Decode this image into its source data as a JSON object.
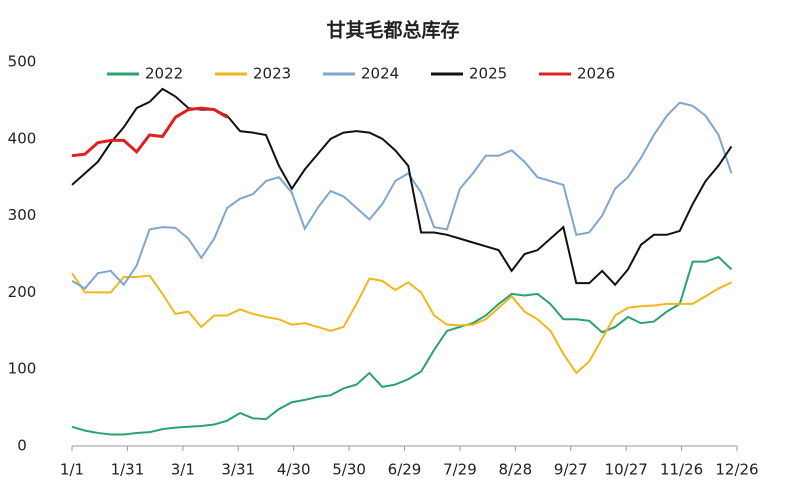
{
  "chart_data": {
    "type": "line",
    "title": "甘其毛都总库存",
    "x": [
      0,
      7,
      14,
      21,
      28,
      35,
      42,
      49,
      56,
      63,
      70,
      77,
      84,
      91,
      98,
      105,
      112,
      119,
      126,
      133,
      140,
      147,
      154,
      161,
      168,
      175,
      182,
      189,
      196,
      203,
      210,
      217,
      224,
      231,
      238,
      245,
      252,
      259,
      266,
      273,
      280,
      287,
      294,
      301,
      308,
      315,
      322,
      329,
      336,
      343,
      350,
      357
    ],
    "xlim": [
      0,
      360
    ],
    "xticks": [
      {
        "value": 0,
        "label": "1/1"
      },
      {
        "value": 30,
        "label": "1/31"
      },
      {
        "value": 60,
        "label": "3/1"
      },
      {
        "value": 90,
        "label": "3/31"
      },
      {
        "value": 120,
        "label": "4/30"
      },
      {
        "value": 150,
        "label": "5/30"
      },
      {
        "value": 180,
        "label": "6/29"
      },
      {
        "value": 210,
        "label": "7/29"
      },
      {
        "value": 240,
        "label": "8/28"
      },
      {
        "value": 270,
        "label": "9/27"
      },
      {
        "value": 300,
        "label": "10/27"
      },
      {
        "value": 330,
        "label": "11/26"
      },
      {
        "value": 360,
        "label": "12/26"
      }
    ],
    "ylim": [
      0,
      500
    ],
    "yticks": [
      0,
      100,
      200,
      300,
      400,
      500
    ],
    "grid": false,
    "legend": "top",
    "series": [
      {
        "name": "2022",
        "color": "#2aa36b",
        "values": [
          25,
          20,
          17,
          15,
          15,
          17,
          18,
          22,
          24,
          25,
          26,
          28,
          33,
          43,
          36,
          35,
          48,
          57,
          60,
          64,
          66,
          75,
          80,
          95,
          77,
          80,
          87,
          97,
          125,
          150,
          155,
          160,
          170,
          185,
          198,
          196,
          198,
          185,
          165,
          165,
          163,
          148,
          155,
          168,
          160,
          162,
          175,
          185,
          240,
          240,
          246,
          230
        ]
      },
      {
        "name": "2023",
        "color": "#f0b71c",
        "values": [
          225,
          200,
          200,
          200,
          220,
          220,
          222,
          198,
          172,
          175,
          155,
          170,
          170,
          178,
          172,
          168,
          165,
          158,
          160,
          155,
          150,
          155,
          185,
          218,
          215,
          203,
          213,
          200,
          170,
          158,
          157,
          158,
          165,
          180,
          195,
          175,
          165,
          150,
          120,
          95,
          110,
          140,
          170,
          180,
          182,
          183,
          185,
          185,
          185,
          195,
          205,
          213
        ]
      },
      {
        "name": "2024",
        "color": "#7ea6d0",
        "values": [
          215,
          205,
          225,
          228,
          210,
          235,
          282,
          285,
          284,
          270,
          245,
          270,
          310,
          322,
          328,
          345,
          350,
          330,
          283,
          310,
          332,
          325,
          310,
          295,
          315,
          345,
          355,
          330,
          285,
          282,
          335,
          355,
          378,
          378,
          385,
          370,
          350,
          345,
          340,
          275,
          278,
          300,
          335,
          350,
          375,
          405,
          430,
          447,
          443,
          430,
          405,
          355
        ]
      },
      {
        "name": "2025",
        "color": "#111111",
        "values": [
          340,
          355,
          370,
          395,
          415,
          440,
          448,
          465,
          455,
          440,
          438,
          438,
          430,
          410,
          408,
          405,
          365,
          335,
          360,
          380,
          400,
          408,
          410,
          408,
          400,
          385,
          365,
          278,
          278,
          275,
          270,
          265,
          260,
          255,
          228,
          250,
          255,
          270,
          285,
          212,
          212,
          228,
          210,
          230,
          262,
          275,
          275,
          280,
          315,
          345,
          365,
          390
        ]
      },
      {
        "name": "2026",
        "color": "#e02020",
        "values": [
          378,
          380,
          395,
          398,
          398,
          383,
          405,
          403,
          428,
          438,
          440,
          438,
          428,
          null,
          null,
          null,
          null,
          null,
          null,
          null,
          null,
          null,
          null,
          null,
          null,
          null,
          null,
          null,
          null,
          null,
          null,
          null,
          null,
          null,
          null,
          null,
          null,
          null,
          null,
          null,
          null,
          null,
          null,
          null,
          null,
          null,
          null,
          null,
          null,
          null,
          null,
          null
        ]
      }
    ]
  }
}
